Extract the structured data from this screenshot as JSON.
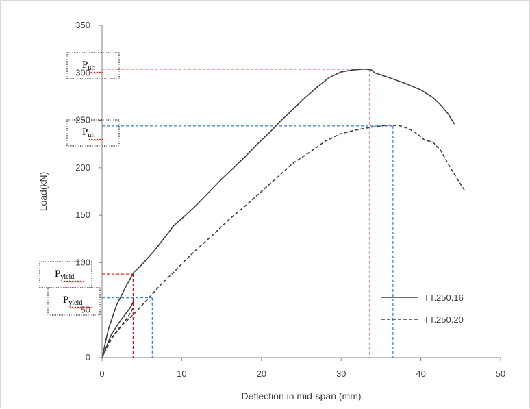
{
  "chart_data": {
    "type": "line",
    "xlabel": "Deflection in mid-span (mm)",
    "ylabel": "Load(kN)",
    "xlim": [
      0,
      50
    ],
    "ylim": [
      0,
      350
    ],
    "xticks": [
      "0",
      "10",
      "20",
      "30",
      "40",
      "50"
    ],
    "yticks": [
      "0",
      "50",
      "100",
      "150",
      "200",
      "250",
      "300",
      "350"
    ],
    "grid": false,
    "legend_position": "right",
    "series": [
      {
        "name": "TT.250.16",
        "style": "solid",
        "x": [
          0,
          0.8,
          1.8,
          3.0,
          4.0,
          5.0,
          6.5,
          8.0,
          9.0,
          10.5,
          12.0,
          13.5,
          15.0,
          16.5,
          18.0,
          19.5,
          21.0,
          22.5,
          24.0,
          25.5,
          27.0,
          28.5,
          30.0,
          31.5,
          33.0,
          33.8,
          34.2,
          36.0,
          38.0,
          40.0,
          41.5,
          42.5,
          43.5,
          44.2
        ],
        "y": [
          0,
          30,
          55,
          75,
          90,
          98,
          112,
          128,
          139,
          150,
          162,
          175,
          188,
          200,
          212,
          225,
          237,
          250,
          262,
          274,
          285,
          295,
          301,
          303,
          304,
          303,
          300,
          295,
          289,
          282,
          274,
          266,
          256,
          246
        ]
      },
      {
        "name": "TT.250.20",
        "style": "dashed",
        "x": [
          0,
          1.0,
          2.0,
          3.0,
          4.0,
          5.0,
          6.0,
          7.5,
          9.0,
          10.5,
          12.0,
          14.0,
          16.0,
          18.0,
          20.0,
          22.0,
          24.0,
          26.0,
          28.0,
          30.0,
          32.0,
          34.0,
          36.0,
          37.5,
          38.5,
          39.5,
          40.5,
          41.5,
          42.5,
          43.5,
          44.5,
          45.5
        ],
        "y": [
          0,
          18,
          30,
          38,
          46,
          55,
          64,
          78,
          90,
          103,
          115,
          130,
          146,
          160,
          175,
          190,
          205,
          216,
          228,
          236,
          240,
          243,
          245,
          244,
          241,
          236,
          229,
          227,
          218,
          203,
          189,
          176
        ]
      },
      {
        "name": "",
        "style": "solid",
        "note": "initial loading curves",
        "x": [
          0,
          1.2,
          2.4,
          3.5,
          4.0
        ],
        "y": [
          0,
          25,
          40,
          52,
          60
        ]
      },
      {
        "name": "",
        "style": "dashed",
        "x": [
          0,
          1.2,
          2.4,
          3.5,
          4.0
        ],
        "y": [
          0,
          20,
          33,
          46,
          54
        ]
      }
    ],
    "reference_lines": [
      {
        "color": "red",
        "x": 33.6,
        "y": 304
      },
      {
        "color": "blue",
        "x": 36.5,
        "y": 244
      },
      {
        "color": "red",
        "x": 3.9,
        "y": 88
      },
      {
        "color": "blue",
        "x": 6.3,
        "y": 63
      }
    ],
    "annotations": [
      {
        "main": "P",
        "sub": "ult",
        "y_value": 304
      },
      {
        "main": "P",
        "sub": "ult",
        "y_value": 244
      },
      {
        "main": "P",
        "sub": "yield",
        "y_value": 88
      },
      {
        "main": "P",
        "sub": "yield",
        "y_value": 63
      }
    ],
    "colors": {
      "axis": "#808080",
      "curve": "#404040",
      "red": "#ff0000",
      "blue": "#2e7bcf"
    }
  }
}
